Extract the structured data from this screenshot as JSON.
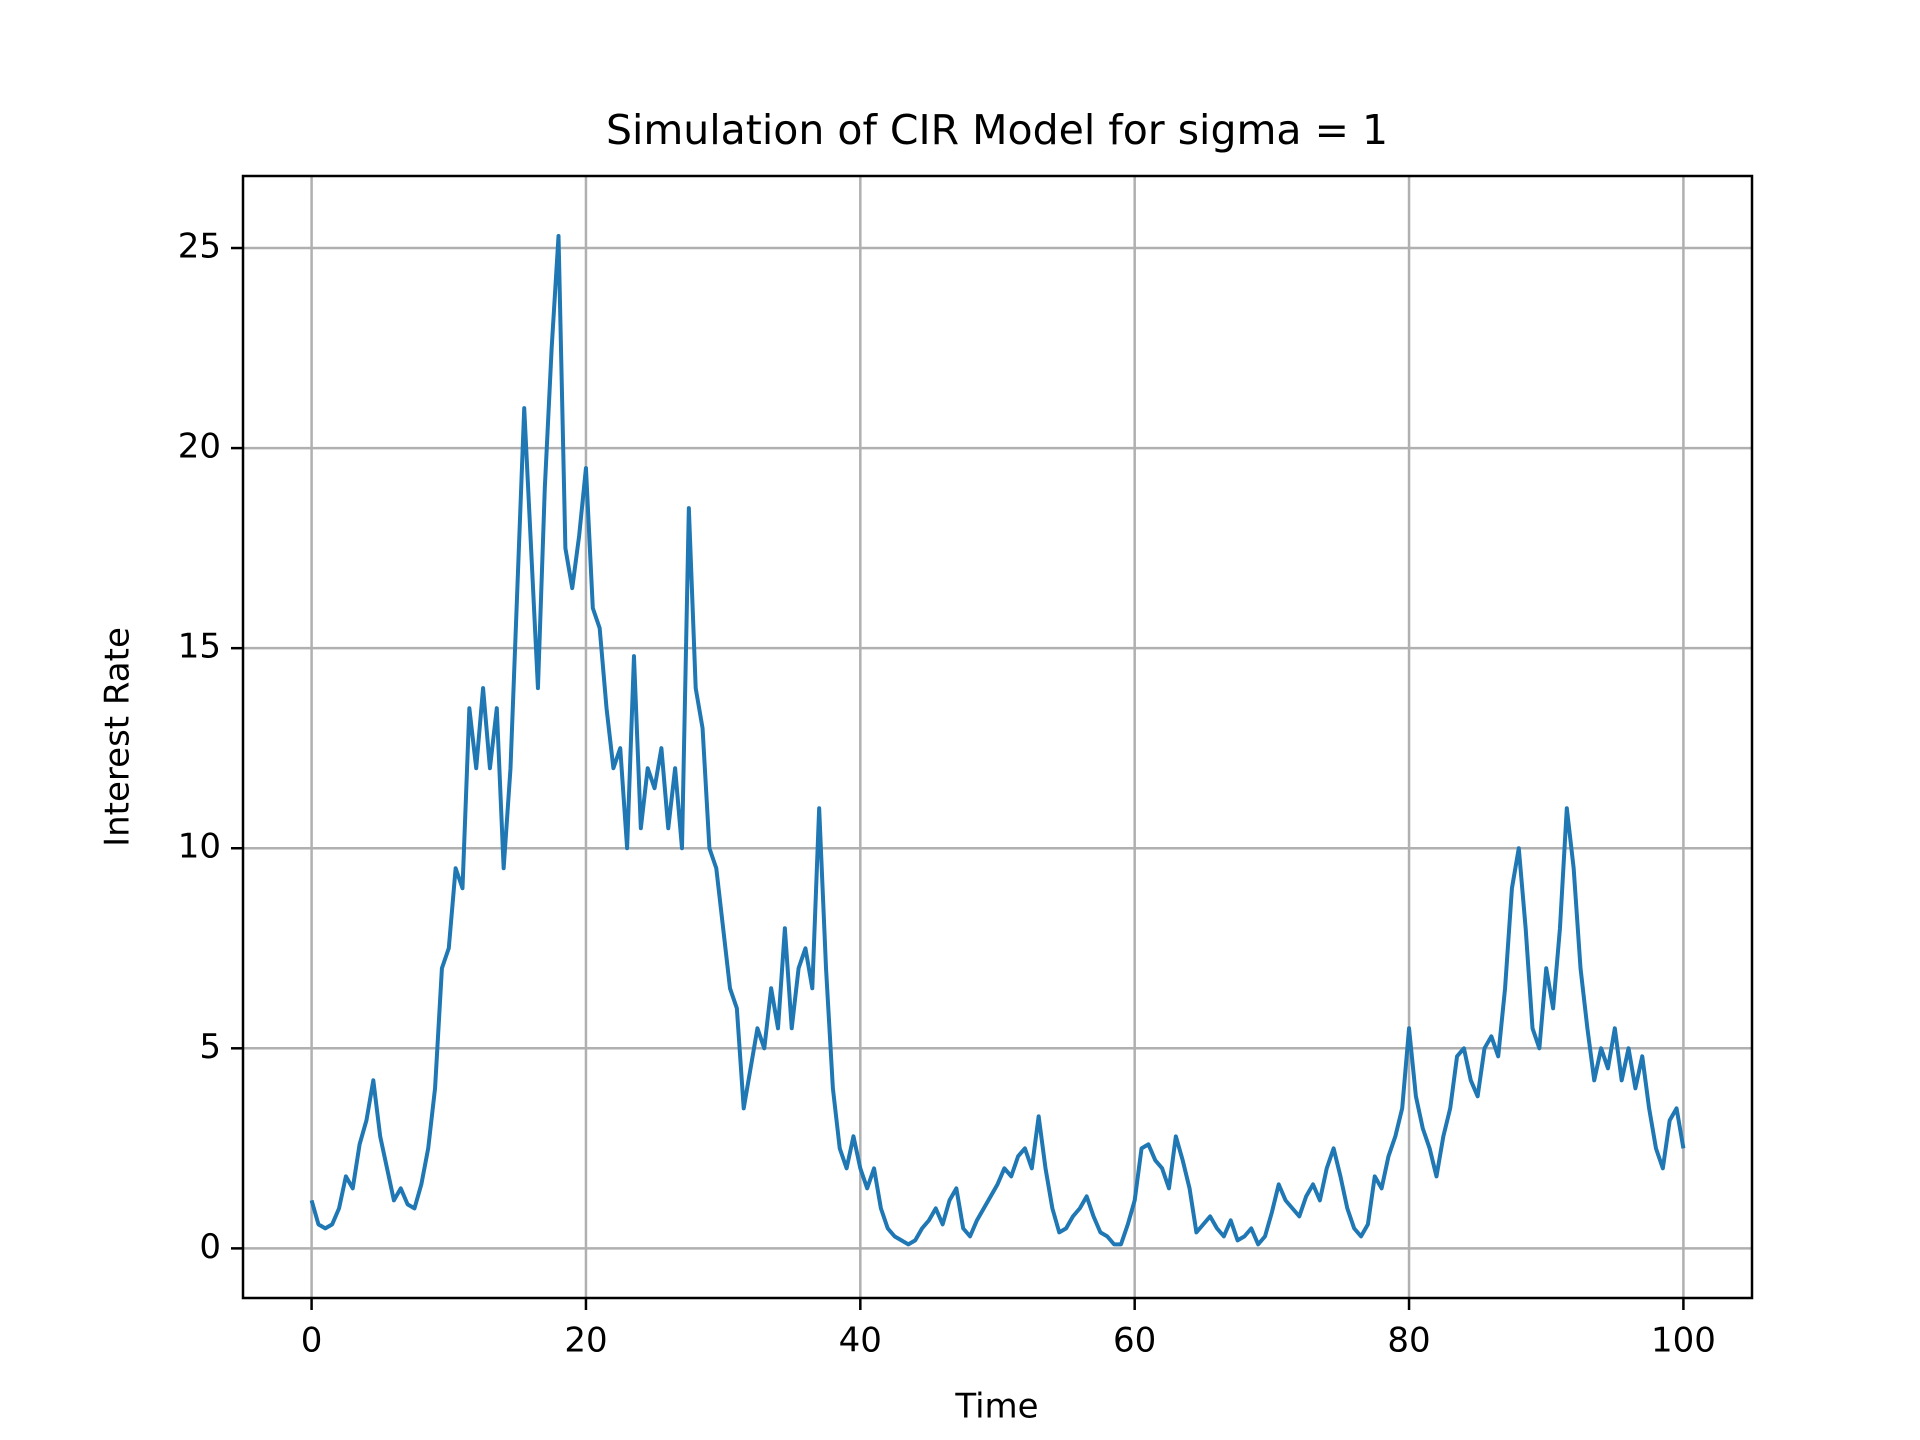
{
  "chart_data": {
    "type": "line",
    "title": "Simulation of CIR Model for sigma = 1",
    "xlabel": "Time",
    "ylabel": "Interest Rate",
    "x": [
      0,
      0.5,
      1,
      1.5,
      2,
      2.5,
      3,
      3.5,
      4,
      4.5,
      5,
      5.5,
      6,
      6.5,
      7,
      7.5,
      8,
      8.5,
      9,
      9.5,
      10,
      10.5,
      11,
      11.5,
      12,
      12.5,
      13,
      13.5,
      14,
      14.5,
      15,
      15.5,
      16,
      16.5,
      17,
      17.5,
      18,
      18.5,
      19,
      19.5,
      20,
      20.5,
      21,
      21.5,
      22,
      22.5,
      23,
      23.5,
      24,
      24.5,
      25,
      25.5,
      26,
      26.5,
      27,
      27.5,
      28,
      28.5,
      29,
      29.5,
      30,
      30.5,
      31,
      31.5,
      32,
      32.5,
      33,
      33.5,
      34,
      34.5,
      35,
      35.5,
      36,
      36.5,
      37,
      37.5,
      38,
      38.5,
      39,
      39.5,
      40,
      40.5,
      41,
      41.5,
      42,
      42.5,
      43,
      43.5,
      44,
      44.5,
      45,
      45.5,
      46,
      46.5,
      47,
      47.5,
      48,
      48.5,
      49,
      49.5,
      50,
      50.5,
      51,
      51.5,
      52,
      52.5,
      53,
      53.5,
      54,
      54.5,
      55,
      55.5,
      56,
      56.5,
      57,
      57.5,
      58,
      58.5,
      59,
      59.5,
      60,
      60.5,
      61,
      61.5,
      62,
      62.5,
      63,
      63.5,
      64,
      64.5,
      65,
      65.5,
      66,
      66.5,
      67,
      67.5,
      68,
      68.5,
      69,
      69.5,
      70,
      70.5,
      71,
      71.5,
      72,
      72.5,
      73,
      73.5,
      74,
      74.5,
      75,
      75.5,
      76,
      76.5,
      77,
      77.5,
      78,
      78.5,
      79,
      79.5,
      80,
      80.5,
      81,
      81.5,
      82,
      82.5,
      83,
      83.5,
      84,
      84.5,
      85,
      85.5,
      86,
      86.5,
      87,
      87.5,
      88,
      88.5,
      89,
      89.5,
      90,
      90.5,
      91,
      91.5,
      92,
      92.5,
      93,
      93.5,
      94,
      94.5,
      95,
      95.5,
      96,
      96.5,
      97,
      97.5,
      98,
      98.5,
      99,
      99.5,
      100
    ],
    "series": [
      {
        "name": "Interest Rate",
        "color": "#1f77b4",
        "values": [
          1.2,
          0.6,
          0.5,
          0.6,
          1.0,
          1.8,
          1.5,
          2.6,
          3.2,
          4.2,
          2.8,
          2.0,
          1.2,
          1.5,
          1.1,
          1.0,
          1.6,
          2.5,
          4.0,
          7.0,
          7.5,
          9.5,
          9.0,
          13.5,
          12.0,
          14.0,
          12.0,
          13.5,
          9.5,
          12.0,
          16.5,
          21.0,
          17.5,
          14.0,
          19.0,
          22.5,
          25.3,
          17.5,
          16.5,
          17.8,
          19.5,
          16.0,
          15.5,
          13.5,
          12.0,
          12.5,
          10.0,
          14.8,
          10.5,
          12.0,
          11.5,
          12.5,
          10.5,
          12.0,
          10.0,
          18.5,
          14.0,
          13.0,
          10.0,
          9.5,
          8.0,
          6.5,
          6.0,
          3.5,
          4.5,
          5.5,
          5.0,
          6.5,
          5.5,
          8.0,
          5.5,
          7.0,
          7.5,
          6.5,
          11.0,
          7.0,
          4.0,
          2.5,
          2.0,
          2.8,
          2.0,
          1.5,
          2.0,
          1.0,
          0.5,
          0.3,
          0.2,
          0.1,
          0.2,
          0.5,
          0.7,
          1.0,
          0.6,
          1.2,
          1.5,
          0.5,
          0.3,
          0.7,
          1.0,
          1.3,
          1.6,
          2.0,
          1.8,
          2.3,
          2.5,
          2.0,
          3.3,
          2.0,
          1.0,
          0.4,
          0.5,
          0.8,
          1.0,
          1.3,
          0.8,
          0.4,
          0.3,
          0.1,
          0.1,
          0.6,
          1.2,
          2.5,
          2.6,
          2.2,
          2.0,
          1.5,
          2.8,
          2.2,
          1.5,
          0.4,
          0.6,
          0.8,
          0.5,
          0.3,
          0.7,
          0.2,
          0.3,
          0.5,
          0.1,
          0.3,
          0.9,
          1.6,
          1.2,
          1.0,
          0.8,
          1.3,
          1.6,
          1.2,
          2.0,
          2.5,
          1.8,
          1.0,
          0.5,
          0.3,
          0.6,
          1.8,
          1.5,
          2.3,
          2.8,
          3.5,
          5.5,
          3.8,
          3.0,
          2.5,
          1.8,
          2.8,
          3.5,
          4.8,
          5.0,
          4.2,
          3.8,
          5.0,
          5.3,
          4.8,
          6.5,
          9.0,
          10.0,
          8.0,
          5.5,
          5.0,
          7.0,
          6.0,
          8.0,
          11.0,
          9.5,
          7.0,
          5.5,
          4.2,
          5.0,
          4.5,
          5.5,
          4.2,
          5.0,
          4.0,
          4.8,
          3.5,
          2.5,
          2.0,
          3.2,
          3.5,
          2.5
        ]
      }
    ],
    "xlim": [
      -5,
      105
    ],
    "ylim": [
      -1.24,
      26.8
    ],
    "xticks": [
      0,
      20,
      40,
      60,
      80,
      100
    ],
    "yticks": [
      0,
      5,
      10,
      15,
      20,
      25
    ],
    "grid": true
  }
}
